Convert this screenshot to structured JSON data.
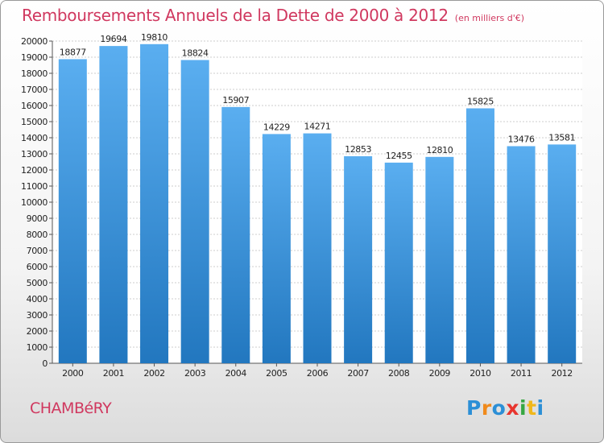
{
  "title": "Remboursements Annuels de la Dette de 2000 à 2012",
  "subtitle": "(en milliers d'€)",
  "city": "CHAMBéRY",
  "brand": {
    "letters": [
      "P",
      "r",
      "o",
      "x",
      "i",
      "t",
      "i"
    ],
    "colors": [
      "#2c8fd6",
      "#f08a1c",
      "#2c8fd6",
      "#e8352e",
      "#36a742",
      "#f0b81c",
      "#2c8fd6"
    ]
  },
  "colors": {
    "title": "#d0385f",
    "bar_top": "#5aaef0",
    "bar_bottom": "#2277bf",
    "grid": "#cccccc"
  },
  "chart_data": {
    "type": "bar",
    "title": "Remboursements Annuels de la Dette de 2000 à 2012",
    "subtitle": "(en milliers d'€)",
    "categories": [
      "2000",
      "2001",
      "2002",
      "2003",
      "2004",
      "2005",
      "2006",
      "2007",
      "2008",
      "2009",
      "2010",
      "2011",
      "2012"
    ],
    "values": [
      18877,
      19694,
      19810,
      18824,
      15907,
      14229,
      14271,
      12853,
      12455,
      12810,
      15825,
      13476,
      13581
    ],
    "ylim": [
      0,
      20000
    ],
    "ytick_step": 1000,
    "grid": true,
    "legend": "none"
  }
}
